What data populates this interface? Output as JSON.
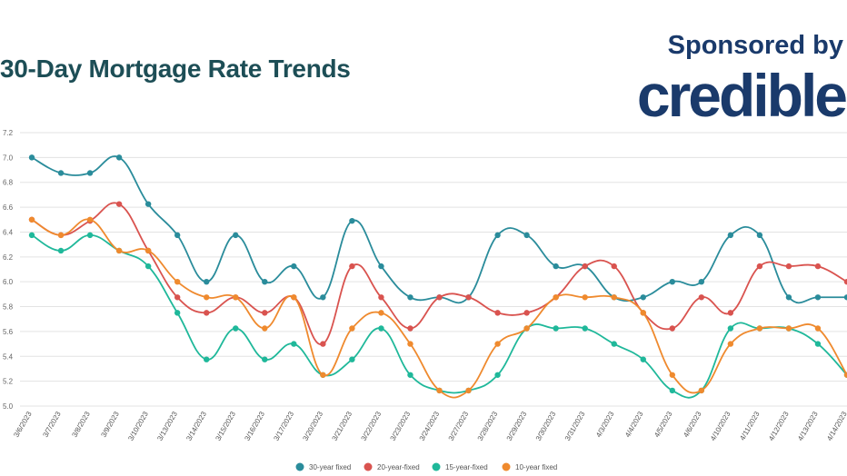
{
  "header": {
    "title": "30-Day Mortgage Rate Trends",
    "sponsor_label": "Sponsored by",
    "brand_name": "credible"
  },
  "chart_data": {
    "type": "line",
    "title": "30-Day Mortgage Rate Trends",
    "xlabel": "",
    "ylabel": "",
    "ylim": [
      5.0,
      7.2
    ],
    "yticks": [
      "5.0",
      "5.2",
      "5.4",
      "5.6",
      "5.8",
      "6.0",
      "6.2",
      "6.4",
      "6.6",
      "6.8",
      "7.0",
      "7.2"
    ],
    "grid": true,
    "legend_position": "bottom",
    "categories": [
      "3/6/2023",
      "3/7/2023",
      "3/8/2023",
      "3/9/2023",
      "3/10/2023",
      "3/13/2023",
      "3/14/2023",
      "3/15/2023",
      "3/16/2023",
      "3/17/2023",
      "3/20/2023",
      "3/21/2023",
      "3/22/2023",
      "3/23/2023",
      "3/24/2023",
      "3/27/2023",
      "3/28/2023",
      "3/29/2023",
      "3/30/2023",
      "3/31/2023",
      "4/3/2023",
      "4/4/2023",
      "4/5/2023",
      "4/6/2023",
      "4/10/2023",
      "4/11/2023",
      "4/12/2023",
      "4/13/2023",
      "4/14/2023"
    ],
    "series": [
      {
        "name": "30-year fixed",
        "color": "#2a8c9b",
        "values": [
          7.0,
          6.875,
          6.875,
          7.0,
          6.625,
          6.375,
          6.0,
          6.375,
          6.0,
          6.125,
          5.875,
          6.49,
          6.125,
          5.875,
          5.875,
          5.875,
          6.375,
          6.375,
          6.125,
          6.125,
          5.875,
          5.875,
          6.0,
          6.0,
          6.375,
          6.375,
          5.875,
          5.875,
          5.875
        ]
      },
      {
        "name": "20-year-fixed",
        "color": "#d9534f",
        "values": [
          6.5,
          6.375,
          6.49,
          6.625,
          6.25,
          5.875,
          5.75,
          5.875,
          5.75,
          5.875,
          5.5,
          6.125,
          5.875,
          5.625,
          5.875,
          5.875,
          5.75,
          5.75,
          5.875,
          6.125,
          6.125,
          5.75,
          5.625,
          5.875,
          5.75,
          6.125,
          6.125,
          6.125,
          6.0
        ]
      },
      {
        "name": "15-year-fixed",
        "color": "#1fb89a",
        "values": [
          6.375,
          6.25,
          6.375,
          6.25,
          6.125,
          5.75,
          5.375,
          5.625,
          5.375,
          5.5,
          5.25,
          5.375,
          5.625,
          5.25,
          5.125,
          5.125,
          5.25,
          5.625,
          5.625,
          5.625,
          5.5,
          5.375,
          5.125,
          5.125,
          5.625,
          5.625,
          5.625,
          5.5,
          5.25
        ]
      },
      {
        "name": "10-year fixed",
        "color": "#ef8a2e",
        "values": [
          6.5,
          6.375,
          6.5,
          6.25,
          6.25,
          6.0,
          5.875,
          5.875,
          5.625,
          5.875,
          5.25,
          5.625,
          5.75,
          5.5,
          5.125,
          5.125,
          5.5,
          5.625,
          5.875,
          5.875,
          5.875,
          5.75,
          5.25,
          5.125,
          5.5,
          5.625,
          5.625,
          5.625,
          5.25
        ]
      }
    ]
  }
}
